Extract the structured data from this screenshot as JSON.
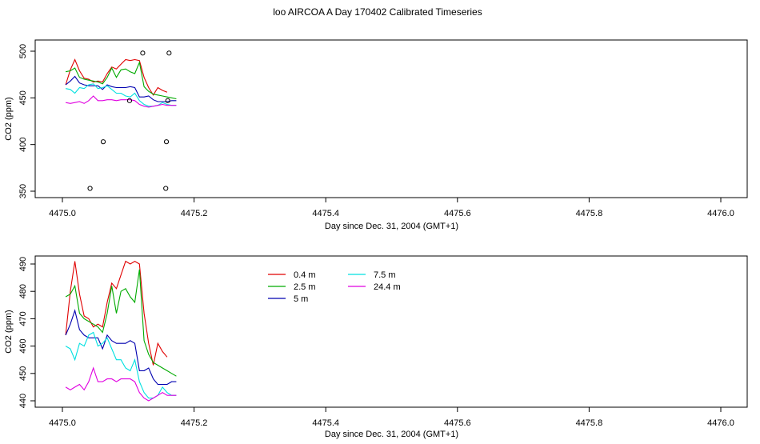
{
  "figure": {
    "title": "loo AIRCOA A  Day 170402  Calibrated Timeseries"
  },
  "colors": {
    "0.4 m": "#e00000",
    "2.5 m": "#00aa00",
    "5 m": "#0000b0",
    "7.5 m": "#00e0e0",
    "24.4 m": "#e000e0",
    "axis": "#000000",
    "marker": "#000000"
  },
  "chart_data": [
    {
      "type": "line",
      "title": "loo AIRCOA A  Day 170402  Calibrated Timeseries",
      "xlabel": "Day since Dec. 31, 2004 (GMT+1)",
      "ylabel": "CO2 (ppm)",
      "xlim": [
        4475.0,
        4476.0
      ],
      "ylim": [
        350,
        500
      ],
      "xticks": [
        "4475.0",
        "4475.2",
        "4475.4",
        "4475.6",
        "4475.8",
        "4476.0"
      ],
      "yticks": [
        "350",
        "400",
        "450",
        "500"
      ],
      "grid": false,
      "legend": null,
      "x": [
        4475.005,
        4475.012,
        4475.019,
        4475.026,
        4475.033,
        4475.04,
        4475.047,
        4475.054,
        4475.061,
        4475.068,
        4475.075,
        4475.082,
        4475.089,
        4475.096,
        4475.103,
        4475.11,
        4475.117,
        4475.124,
        4475.131,
        4475.138,
        4475.145,
        4475.152,
        4475.159,
        4475.166,
        4475.173
      ],
      "series": [
        {
          "name": "0.4 m",
          "values": [
            464,
            480,
            491,
            479,
            471,
            470,
            467,
            468,
            467,
            476,
            483,
            481,
            486,
            491,
            490,
            491,
            490,
            472,
            461,
            453,
            461,
            458,
            456,
            null,
            null
          ]
        },
        {
          "name": "2.5 m",
          "values": [
            478,
            479,
            482,
            472,
            470,
            469,
            468,
            467,
            465,
            472,
            482,
            472,
            480,
            481,
            478,
            476,
            488,
            462,
            457,
            454,
            453,
            452,
            451,
            450,
            449
          ]
        },
        {
          "name": "5 m",
          "values": [
            464,
            468,
            473,
            466,
            464,
            463,
            463,
            463,
            459,
            464,
            462,
            461,
            461,
            461,
            462,
            461,
            451,
            451,
            452,
            448,
            446,
            446,
            446,
            447,
            447
          ]
        },
        {
          "name": "7.5 m",
          "values": [
            460,
            459,
            455,
            461,
            460,
            464,
            465,
            460,
            461,
            463,
            459,
            455,
            455,
            452,
            451,
            455,
            447,
            443,
            441,
            441,
            442,
            445,
            443,
            442,
            442
          ]
        },
        {
          "name": "24.4 m",
          "values": [
            445,
            444,
            445,
            446,
            444,
            447,
            452,
            447,
            447,
            448,
            448,
            447,
            448,
            448,
            448,
            447,
            443,
            441,
            440,
            441,
            442,
            443,
            442,
            442,
            442
          ]
        }
      ],
      "points": [
        {
          "x": 4475.042,
          "y": 353
        },
        {
          "x": 4475.062,
          "y": 403
        },
        {
          "x": 4475.102,
          "y": 447
        },
        {
          "x": 4475.122,
          "y": 498
        },
        {
          "x": 4475.157,
          "y": 353
        },
        {
          "x": 4475.158,
          "y": 403
        },
        {
          "x": 4475.16,
          "y": 447
        },
        {
          "x": 4475.162,
          "y": 498
        }
      ]
    },
    {
      "type": "line",
      "title": "",
      "xlabel": "Day since Dec. 31, 2004 (GMT+1)",
      "ylabel": "CO2 (ppm)",
      "xlim": [
        4475.0,
        4476.0
      ],
      "ylim": [
        440,
        492
      ],
      "xticks": [
        "4475.0",
        "4475.2",
        "4475.4",
        "4475.6",
        "4475.8",
        "4476.0"
      ],
      "yticks": [
        "440",
        "450",
        "460",
        "470",
        "480",
        "490"
      ],
      "grid": false,
      "legend": {
        "placement": "top-center",
        "entries": [
          "0.4 m",
          "2.5 m",
          "5 m",
          "7.5 m",
          "24.4 m"
        ]
      },
      "x": [
        4475.005,
        4475.012,
        4475.019,
        4475.026,
        4475.033,
        4475.04,
        4475.047,
        4475.054,
        4475.061,
        4475.068,
        4475.075,
        4475.082,
        4475.089,
        4475.096,
        4475.103,
        4475.11,
        4475.117,
        4475.124,
        4475.131,
        4475.138,
        4475.145,
        4475.152,
        4475.159,
        4475.166,
        4475.173
      ],
      "series": [
        {
          "name": "0.4 m",
          "values": [
            464,
            480,
            491,
            479,
            471,
            470,
            467,
            468,
            467,
            476,
            483,
            481,
            486,
            491,
            490,
            491,
            490,
            472,
            461,
            453,
            461,
            458,
            456,
            null,
            null
          ]
        },
        {
          "name": "2.5 m",
          "values": [
            478,
            479,
            482,
            472,
            470,
            469,
            468,
            467,
            465,
            472,
            482,
            472,
            480,
            481,
            478,
            476,
            488,
            462,
            457,
            454,
            453,
            452,
            451,
            450,
            449
          ]
        },
        {
          "name": "5 m",
          "values": [
            464,
            468,
            473,
            466,
            464,
            463,
            463,
            463,
            459,
            464,
            462,
            461,
            461,
            461,
            462,
            461,
            451,
            451,
            452,
            448,
            446,
            446,
            446,
            447,
            447
          ]
        },
        {
          "name": "7.5 m",
          "values": [
            460,
            459,
            455,
            461,
            460,
            464,
            465,
            460,
            461,
            463,
            459,
            455,
            455,
            452,
            451,
            455,
            447,
            443,
            441,
            441,
            442,
            445,
            443,
            442,
            442
          ]
        },
        {
          "name": "24.4 m",
          "values": [
            445,
            444,
            445,
            446,
            444,
            447,
            452,
            447,
            447,
            448,
            448,
            447,
            448,
            448,
            448,
            447,
            443,
            441,
            440,
            441,
            442,
            443,
            442,
            442,
            442
          ]
        }
      ],
      "points": []
    }
  ]
}
